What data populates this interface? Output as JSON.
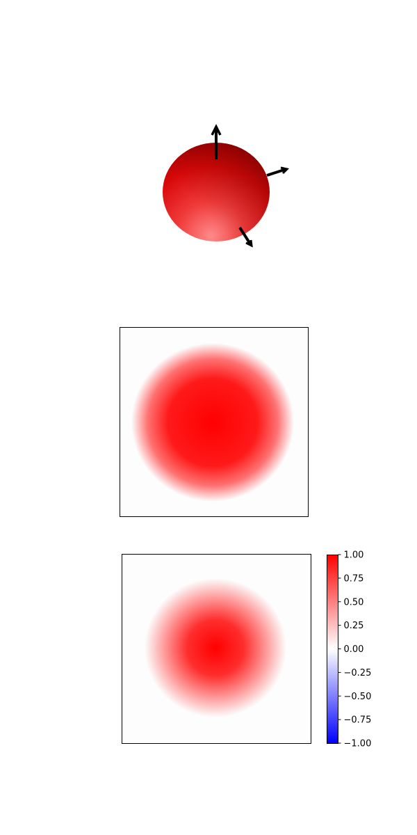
{
  "chart_data": [
    {
      "type": "3d-surface",
      "description_free": true,
      "surface_color": "#ff0000",
      "arrows": 3
    },
    {
      "type": "heatmap",
      "grid": false,
      "peak_value": 1.0,
      "background_value": 0.0,
      "radius_fraction": 0.38
    },
    {
      "type": "heatmap",
      "grid": false,
      "peak_value": 1.0,
      "background_value": 0.0,
      "radius_fraction": 0.28
    }
  ],
  "colorbar": {
    "cmap": "bwr",
    "vmin": -1.0,
    "vmax": 1.0,
    "low_color": "#0000ff",
    "mid_color": "#ffffff",
    "high_color": "#ff0000",
    "tick_labels": [
      "1.00",
      "0.75",
      "0.50",
      "0.25",
      "0.00",
      "−0.25",
      "−0.50",
      "−0.75",
      "−1.00"
    ]
  }
}
